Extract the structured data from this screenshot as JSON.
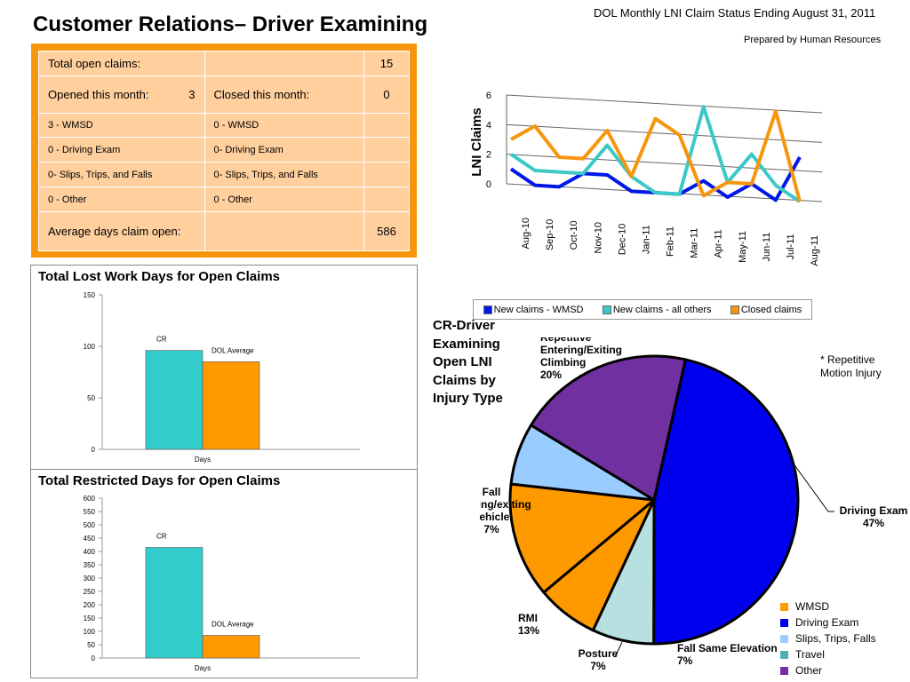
{
  "page": {
    "title": "Customer Relations– Driver Examining",
    "report_title": "DOL Monthly LNI Claim Status Ending August 31, 2011",
    "prepared_by": "Prepared by Human Resources"
  },
  "summary_table": {
    "total_open_label": "Total open claims:",
    "total_open_value": "15",
    "opened_label": "Opened this month:",
    "opened_value": "3",
    "closed_label": "Closed this month:",
    "closed_value": "0",
    "rows": [
      {
        "left": "3 - WMSD",
        "right": "0 - WMSD"
      },
      {
        "left": "0 -  Driving Exam",
        "right": "0- Driving Exam"
      },
      {
        "left": "0- Slips, Trips, and Falls",
        "right": "0- Slips, Trips, and Falls"
      },
      {
        "left": "0 -  Other",
        "right": "0 - Other"
      }
    ],
    "avg_label": "Average days claim open:",
    "avg_value": "586"
  },
  "chart_data": [
    {
      "type": "line",
      "title": "",
      "ylabel": "LNI Claims",
      "ylim": [
        0,
        6
      ],
      "yticks": [
        "0",
        "2",
        "4",
        "6"
      ],
      "categories": [
        "Aug-10",
        "Sep-10",
        "Oct-10",
        "Nov-10",
        "Dec-10",
        "Jan-11",
        "Feb-11",
        "Mar-11",
        "Apr-11",
        "May-11",
        "Jun-11",
        "Jul-11",
        "Aug-11"
      ],
      "series": [
        {
          "name": "New claims - WMSD",
          "color": "#0018e6",
          "values": [
            1,
            0,
            0,
            1,
            1,
            0,
            0,
            0,
            1,
            0,
            1,
            0,
            3
          ]
        },
        {
          "name": "New claims - all others",
          "color": "#3cc8c8",
          "values": [
            2,
            1,
            1,
            1,
            3,
            1,
            0,
            0,
            6,
            1,
            3,
            1,
            0
          ]
        },
        {
          "name": "Closed claims",
          "color": "#f7960d",
          "values": [
            3,
            4,
            2,
            2,
            4,
            1,
            5,
            4,
            0,
            1,
            1,
            6,
            0
          ]
        }
      ],
      "legend": "bottom"
    },
    {
      "type": "bar",
      "title": "Total Lost Work Days for Open Claims",
      "categories": [
        "Days"
      ],
      "ylim": [
        0,
        150
      ],
      "yticks": [
        "0",
        "50",
        "100",
        "150"
      ],
      "series": [
        {
          "name": "CR",
          "color": "#33cccc",
          "values": [
            96
          ]
        },
        {
          "name": "DOL Average",
          "color": "#ff9900",
          "values": [
            85
          ]
        }
      ]
    },
    {
      "type": "bar",
      "title": "Total Restricted Days for Open Claims",
      "categories": [
        "Days"
      ],
      "ylim": [
        0,
        600
      ],
      "yticks": [
        "0",
        "50",
        "100",
        "150",
        "200",
        "250",
        "300",
        "350",
        "400",
        "450",
        "500",
        "550",
        "600"
      ],
      "series": [
        {
          "name": "CR",
          "color": "#33cccc",
          "values": [
            415
          ]
        },
        {
          "name": "DOL Average",
          "color": "#ff9900",
          "values": [
            85
          ]
        }
      ]
    },
    {
      "type": "pie",
      "title": "CR-Driver Examining Open LNI Claims by Injury Type",
      "slices": [
        {
          "label": "Driving Exam",
          "pct_label": "47%",
          "value": 47,
          "color": "#0000ee"
        },
        {
          "label": "Fall Same Elevation",
          "pct_label": "7%",
          "value": 7,
          "color": "#b8e0e0"
        },
        {
          "label": "Posture",
          "pct_label": "7%",
          "value": 7,
          "color": "#ff9900"
        },
        {
          "label": "RMI",
          "pct_label": "13%",
          "value": 13,
          "color": "#ff9900"
        },
        {
          "label": "Fall entering/exiting vehicle",
          "pct_label": "7%",
          "value": 7,
          "color": "#99ccff"
        },
        {
          "label": "Repetitive Entering/Exiting Climbing",
          "pct_label": "20%",
          "value": 20,
          "color": "#7030a0"
        }
      ],
      "note": "* Repetitive Motion Injury",
      "legend": [
        {
          "label": "WMSD",
          "color": "#ff9900"
        },
        {
          "label": "Driving Exam",
          "color": "#0000ee"
        },
        {
          "label": "Slips, Trips, Falls",
          "color": "#99ccff"
        },
        {
          "label": "Travel",
          "color": "#4fb0b0"
        },
        {
          "label": "Other",
          "color": "#7030a0"
        }
      ]
    }
  ]
}
